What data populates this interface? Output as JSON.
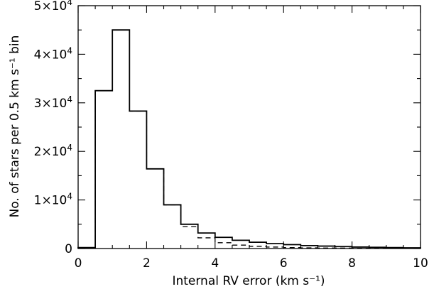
{
  "chart_data": {
    "type": "histogram",
    "xlabel": "Internal RV error (km s⁻¹)",
    "ylabel": "No. of stars per 0.5 km s⁻¹ bin",
    "xlim": [
      0,
      10
    ],
    "ylim": [
      0,
      50000
    ],
    "x_ticks": [
      {
        "value": 0,
        "label": "0"
      },
      {
        "value": 2,
        "label": "2"
      },
      {
        "value": 4,
        "label": "4"
      },
      {
        "value": 6,
        "label": "6"
      },
      {
        "value": 8,
        "label": "8"
      },
      {
        "value": 10,
        "label": "10"
      }
    ],
    "y_ticks": [
      {
        "value": 0,
        "mant": "0",
        "exp": ""
      },
      {
        "value": 10000,
        "mant": "1×10",
        "exp": "4"
      },
      {
        "value": 20000,
        "mant": "2×10",
        "exp": "4"
      },
      {
        "value": 30000,
        "mant": "3×10",
        "exp": "4"
      },
      {
        "value": 40000,
        "mant": "4×10",
        "exp": "4"
      },
      {
        "value": 50000,
        "mant": "5×10",
        "exp": "4"
      }
    ],
    "x_minor_step": 0.5,
    "y_minor_step": 5000,
    "grid": false,
    "bin_width": 0.5,
    "bin_edges": [
      0,
      0.5,
      1,
      1.5,
      2,
      2.5,
      3,
      3.5,
      4,
      4.5,
      5,
      5.5,
      6,
      6.5,
      7,
      7.5,
      8,
      8.5,
      9,
      9.5,
      10
    ],
    "series": [
      {
        "style": "solid",
        "values": [
          200,
          32500,
          45000,
          28300,
          16400,
          9000,
          5000,
          3200,
          2300,
          1700,
          1300,
          1000,
          800,
          600,
          500,
          400,
          300,
          250,
          200,
          150
        ]
      },
      {
        "style": "dashed",
        "values": [
          200,
          32500,
          45000,
          28300,
          16400,
          9000,
          4500,
          2200,
          1200,
          700,
          450,
          300,
          200,
          150,
          100,
          80,
          60,
          50,
          40,
          30
        ]
      }
    ]
  }
}
